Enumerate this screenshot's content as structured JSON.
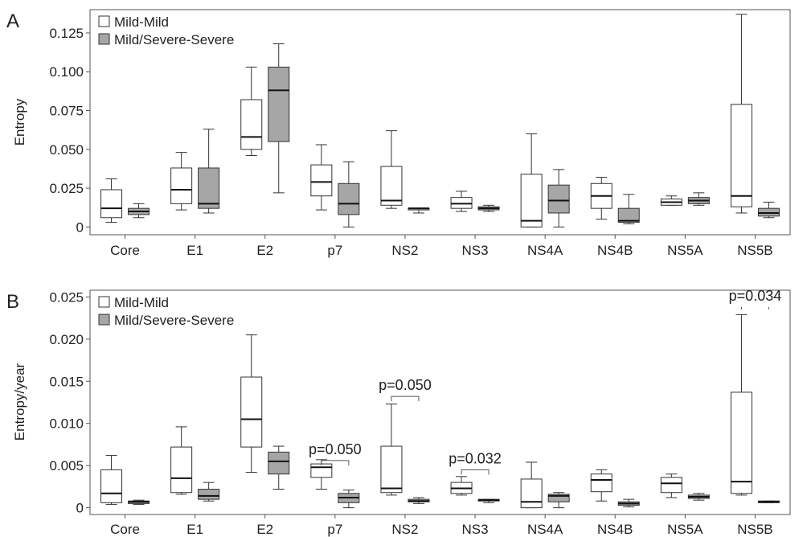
{
  "chart_data": [
    {
      "type": "box",
      "panel": "A",
      "xlabel": "",
      "ylabel": "Entropy",
      "ylim": [
        -0.005,
        0.14
      ],
      "yticks": [
        0,
        0.025,
        0.05,
        0.075,
        0.1,
        0.125
      ],
      "ytick_labels": [
        "0",
        "0.025",
        "0.050",
        "0.075",
        "0.100",
        "0.125"
      ],
      "categories": [
        "Core",
        "E1",
        "E2",
        "p7",
        "NS2",
        "NS3",
        "NS4A",
        "NS4B",
        "NS5A",
        "NS5B"
      ],
      "legend": {
        "position": "top-left"
      },
      "series": [
        {
          "name": "Mild-Mild",
          "color": "#ffffff",
          "boxes": [
            {
              "min": 0.003,
              "q1": 0.006,
              "median": 0.012,
              "q3": 0.024,
              "max": 0.031
            },
            {
              "min": 0.011,
              "q1": 0.015,
              "median": 0.024,
              "q3": 0.038,
              "max": 0.048
            },
            {
              "min": 0.046,
              "q1": 0.05,
              "median": 0.058,
              "q3": 0.082,
              "max": 0.103
            },
            {
              "min": 0.011,
              "q1": 0.02,
              "median": 0.029,
              "q3": 0.04,
              "max": 0.053
            },
            {
              "min": 0.012,
              "q1": 0.014,
              "median": 0.017,
              "q3": 0.039,
              "max": 0.062
            },
            {
              "min": 0.01,
              "q1": 0.012,
              "median": 0.015,
              "q3": 0.019,
              "max": 0.023
            },
            {
              "min": 0.0,
              "q1": 0.0,
              "median": 0.004,
              "q3": 0.034,
              "max": 0.06
            },
            {
              "min": 0.005,
              "q1": 0.012,
              "median": 0.02,
              "q3": 0.028,
              "max": 0.032
            },
            {
              "min": 0.014,
              "q1": 0.014,
              "median": 0.016,
              "q3": 0.018,
              "max": 0.02
            },
            {
              "min": 0.009,
              "q1": 0.013,
              "median": 0.02,
              "q3": 0.079,
              "max": 0.137
            }
          ]
        },
        {
          "name": "Mild/Severe-Severe",
          "color": "#a6a6a6",
          "boxes": [
            {
              "min": 0.006,
              "q1": 0.008,
              "median": 0.01,
              "q3": 0.012,
              "max": 0.015
            },
            {
              "min": 0.009,
              "q1": 0.012,
              "median": 0.015,
              "q3": 0.038,
              "max": 0.063
            },
            {
              "min": 0.022,
              "q1": 0.055,
              "median": 0.088,
              "q3": 0.103,
              "max": 0.118
            },
            {
              "min": 0.0,
              "q1": 0.008,
              "median": 0.015,
              "q3": 0.028,
              "max": 0.042
            },
            {
              "min": 0.009,
              "q1": 0.011,
              "median": 0.012,
              "q3": 0.012,
              "max": 0.012
            },
            {
              "min": 0.01,
              "q1": 0.011,
              "median": 0.012,
              "q3": 0.013,
              "max": 0.014
            },
            {
              "min": 0.0,
              "q1": 0.009,
              "median": 0.017,
              "q3": 0.027,
              "max": 0.037
            },
            {
              "min": 0.002,
              "q1": 0.003,
              "median": 0.004,
              "q3": 0.012,
              "max": 0.021
            },
            {
              "min": 0.014,
              "q1": 0.015,
              "median": 0.017,
              "q3": 0.019,
              "max": 0.022
            },
            {
              "min": 0.006,
              "q1": 0.007,
              "median": 0.009,
              "q3": 0.012,
              "max": 0.016
            }
          ]
        }
      ],
      "annotations": []
    },
    {
      "type": "box",
      "panel": "B",
      "xlabel": "",
      "ylabel": "Entropy/year",
      "ylim": [
        -0.0008,
        0.0258
      ],
      "yticks": [
        0,
        0.005,
        0.01,
        0.015,
        0.02,
        0.025
      ],
      "ytick_labels": [
        "0",
        "0.005",
        "0.010",
        "0.015",
        "0.020",
        "0.025"
      ],
      "categories": [
        "Core",
        "E1",
        "E2",
        "p7",
        "NS2",
        "NS3",
        "NS4A",
        "NS4B",
        "NS5A",
        "NS5B"
      ],
      "legend": {
        "position": "top-left"
      },
      "series": [
        {
          "name": "Mild-Mild",
          "color": "#ffffff",
          "boxes": [
            {
              "min": 0.0004,
              "q1": 0.0006,
              "median": 0.0017,
              "q3": 0.0045,
              "max": 0.0062
            },
            {
              "min": 0.0016,
              "q1": 0.0018,
              "median": 0.0035,
              "q3": 0.0072,
              "max": 0.0096
            },
            {
              "min": 0.0042,
              "q1": 0.0072,
              "median": 0.0105,
              "q3": 0.0155,
              "max": 0.0205
            },
            {
              "min": 0.0022,
              "q1": 0.0036,
              "median": 0.0048,
              "q3": 0.0052,
              "max": 0.0057
            },
            {
              "min": 0.0015,
              "q1": 0.0018,
              "median": 0.0023,
              "q3": 0.0073,
              "max": 0.0123
            },
            {
              "min": 0.0015,
              "q1": 0.0017,
              "median": 0.0023,
              "q3": 0.003,
              "max": 0.0037
            },
            {
              "min": 0.0,
              "q1": 0.0,
              "median": 0.0007,
              "q3": 0.0034,
              "max": 0.0054
            },
            {
              "min": 0.0008,
              "q1": 0.0019,
              "median": 0.0033,
              "q3": 0.004,
              "max": 0.0045
            },
            {
              "min": 0.0012,
              "q1": 0.0018,
              "median": 0.0029,
              "q3": 0.0036,
              "max": 0.004
            },
            {
              "min": 0.0015,
              "q1": 0.0017,
              "median": 0.0031,
              "q3": 0.0137,
              "max": 0.0229
            }
          ]
        },
        {
          "name": "Mild/Severe-Severe",
          "color": "#a6a6a6",
          "boxes": [
            {
              "min": 0.0004,
              "q1": 0.0005,
              "median": 0.0007,
              "q3": 0.0008,
              "max": 0.0009
            },
            {
              "min": 0.0008,
              "q1": 0.001,
              "median": 0.0014,
              "q3": 0.0022,
              "max": 0.003
            },
            {
              "min": 0.0022,
              "q1": 0.004,
              "median": 0.0055,
              "q3": 0.0066,
              "max": 0.0073
            },
            {
              "min": 0.0,
              "q1": 0.0006,
              "median": 0.0012,
              "q3": 0.0017,
              "max": 0.0021
            },
            {
              "min": 0.0005,
              "q1": 0.0007,
              "median": 0.0008,
              "q3": 0.001,
              "max": 0.0012
            },
            {
              "min": 0.0006,
              "q1": 0.0008,
              "median": 0.0009,
              "q3": 0.001,
              "max": 0.001
            },
            {
              "min": 0.0,
              "q1": 0.0007,
              "median": 0.0014,
              "q3": 0.0016,
              "max": 0.0018
            },
            {
              "min": 0.0001,
              "q1": 0.0003,
              "median": 0.0005,
              "q3": 0.0007,
              "max": 0.001
            },
            {
              "min": 0.0009,
              "q1": 0.0011,
              "median": 0.0013,
              "q3": 0.0015,
              "max": 0.0017
            },
            {
              "min": 0.0006,
              "q1": 0.0006,
              "median": 0.0007,
              "q3": 0.0008,
              "max": 0.0008
            }
          ]
        }
      ],
      "annotations": [
        {
          "category": "p7",
          "text": "p=0.050",
          "bracket_y": 0.0056
        },
        {
          "category": "NS2",
          "text": "p=0.050",
          "bracket_y": 0.0132
        },
        {
          "category": "NS3",
          "text": "p=0.032",
          "bracket_y": 0.0045
        },
        {
          "category": "NS5B",
          "text": "p=0.034",
          "bracket_y": 0.0238
        }
      ]
    }
  ]
}
